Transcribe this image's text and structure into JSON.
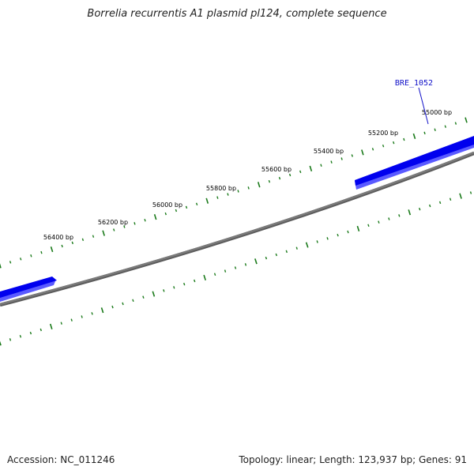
{
  "title": "Borrelia recurrentis A1 plasmid pl124, complete sequence",
  "footer": {
    "accession_text": "Accession: NC_011246",
    "summary_text": "Topology: linear; Length: 123,937 bp; Genes: 91"
  },
  "colors": {
    "backbone": "#7a7a7a",
    "gene_fill": "#0000ee",
    "gene_label": "#1010c8",
    "tick": "#1a7a1a"
  },
  "ruler_labels": [
    "55000 bp",
    "55200 bp",
    "55400 bp",
    "55600 bp",
    "55800 bp",
    "56000 bp",
    "56200 bp",
    "56400 bp"
  ],
  "gene_labels": [
    "BRE_1052"
  ]
}
